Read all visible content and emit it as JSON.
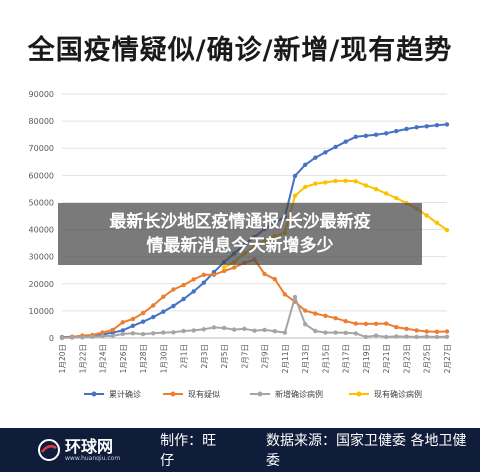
{
  "title": "全国疫情疑似/确诊/新增/现有趋势",
  "overlay": {
    "line1": "最新长沙地区疫情通报/长沙最新疫",
    "line2": "情最新消息今天新增多少"
  },
  "footer": {
    "logo_name": "环球网",
    "logo_url": "www.huanqiu.com",
    "credit": "制作：旺仔",
    "source": "数据来源：国家卫健委 各地卫健委"
  },
  "colors": {
    "cumulative": "#4472c4",
    "suspected": "#ed7d31",
    "new": "#a5a5a5",
    "current": "#ffc000",
    "footer_bg": "#0f1c3a"
  },
  "chart_data": {
    "type": "line",
    "title": "全国疫情疑似/确诊/新增/现有趋势",
    "xlabel": "",
    "ylabel": "",
    "ylim": [
      0,
      90000
    ],
    "yticks": [
      0,
      10000,
      20000,
      30000,
      40000,
      50000,
      60000,
      70000,
      80000,
      90000
    ],
    "grid": true,
    "legend_position": "bottom",
    "tick_labels": [
      "1月20日",
      "1月22日",
      "1月24日",
      "1月26日",
      "1月28日",
      "1月30日",
      "2月1日",
      "2月3日",
      "2月5日",
      "2月7日",
      "2月9日",
      "2月11日",
      "2月13日",
      "2月15日",
      "2月17日",
      "2月19日",
      "2月21日",
      "2月23日",
      "2月25日",
      "2月27日"
    ],
    "n_points": 39,
    "series": [
      {
        "name": "累计确诊",
        "color": "#4472c4",
        "values": [
          300,
          440,
          570,
          830,
          1300,
          2000,
          2800,
          4500,
          6000,
          7700,
          9700,
          11800,
          14400,
          17200,
          20400,
          24300,
          28000,
          31200,
          34500,
          37200,
          40200,
          42600,
          44700,
          59800,
          63900,
          66500,
          68500,
          70500,
          72400,
          74200,
          74600,
          75000,
          75500,
          76300,
          77100,
          77700,
          78100,
          78500,
          78800
        ]
      },
      {
        "name": "现有疑似",
        "color": "#ed7d31",
        "values": [
          0,
          400,
          900,
          1100,
          2000,
          3000,
          5800,
          7000,
          9200,
          12000,
          15200,
          17900,
          19500,
          21600,
          23300,
          23300,
          24700,
          26000,
          27700,
          28900,
          23600,
          21700,
          16100,
          13400,
          10100,
          9000,
          8200,
          7300,
          6200,
          5300,
          5200,
          5250,
          5300,
          4000,
          3400,
          2800,
          2400,
          2300,
          2400
        ]
      },
      {
        "name": "新增确诊病例",
        "color": "#a5a5a5",
        "values": [
          80,
          150,
          260,
          440,
          690,
          770,
          1500,
          1750,
          1450,
          1750,
          2000,
          2100,
          2600,
          2800,
          3200,
          3900,
          3700,
          3100,
          3400,
          2700,
          3000,
          2500,
          2000,
          15100,
          5100,
          2600,
          2000,
          2000,
          1900,
          1700,
          400,
          900,
          400,
          600,
          500,
          400,
          500,
          400,
          430
        ]
      },
      {
        "name": "现有确诊病例",
        "color": "#ffc000",
        "values": [
          null,
          null,
          null,
          null,
          null,
          null,
          null,
          null,
          null,
          null,
          null,
          null,
          null,
          null,
          null,
          null,
          26000,
          28000,
          31200,
          33700,
          36000,
          37600,
          38800,
          52500,
          55700,
          56900,
          57400,
          57900,
          58000,
          57800,
          56300,
          54900,
          53300,
          51600,
          49800,
          47700,
          45200,
          42500,
          39800
        ]
      }
    ]
  }
}
